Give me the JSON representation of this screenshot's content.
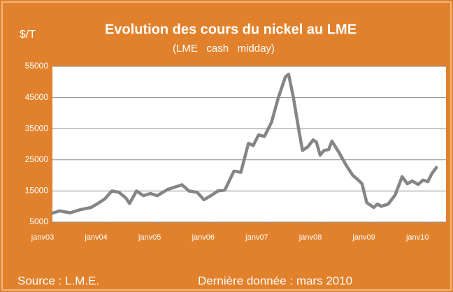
{
  "chart_data": {
    "type": "line",
    "title": "Evolution des cours du nickel au LME",
    "subtitle": "(LME   cash   midday)",
    "y_label": "$/T",
    "source": "Source : L.M.E.",
    "note": "Dernière donnée : mars 2010",
    "x": [
      2003.0,
      2003.13,
      2003.33,
      2003.52,
      2003.72,
      2003.85,
      2003.98,
      2004.11,
      2004.24,
      2004.37,
      2004.44,
      2004.57,
      2004.7,
      2004.83,
      2004.96,
      2005.15,
      2005.28,
      2005.42,
      2005.55,
      2005.7,
      2005.83,
      2005.96,
      2006.09,
      2006.22,
      2006.39,
      2006.52,
      2006.66,
      2006.75,
      2006.85,
      2006.96,
      2007.09,
      2007.22,
      2007.35,
      2007.41,
      2007.5,
      2007.61,
      2007.67,
      2007.77,
      2007.87,
      2007.93,
      2008.0,
      2008.07,
      2008.16,
      2008.22,
      2008.35,
      2008.48,
      2008.61,
      2008.7,
      2008.78,
      2008.87,
      2009.0,
      2009.07,
      2009.14,
      2009.27,
      2009.4,
      2009.53,
      2009.63,
      2009.72,
      2009.83,
      2009.92,
      2010.01,
      2010.09,
      2010.17
    ],
    "series": [
      {
        "name": "Nickel",
        "color": "#858585",
        "values": [
          7900,
          8600,
          8000,
          9000,
          9700,
          11000,
          12500,
          15000,
          14600,
          12800,
          11000,
          15000,
          13500,
          14200,
          13500,
          15500,
          16200,
          17000,
          15000,
          14600,
          12200,
          13500,
          15000,
          15300,
          21400,
          21000,
          30300,
          29600,
          33000,
          32500,
          37000,
          45000,
          51600,
          52500,
          45000,
          33700,
          28000,
          29200,
          31400,
          30700,
          26500,
          28000,
          28300,
          31000,
          27400,
          23400,
          20000,
          18700,
          17400,
          11300,
          9700,
          10800,
          10100,
          10800,
          13700,
          19600,
          17300,
          18200,
          17100,
          18500,
          18000,
          20700,
          22500
        ]
      }
    ],
    "xlim": [
      2003,
      2010.35
    ],
    "xticks": [
      {
        "value": 2003,
        "label": "janv03"
      },
      {
        "value": 2004,
        "label": "janv04"
      },
      {
        "value": 2005,
        "label": "janv05"
      },
      {
        "value": 2006,
        "label": "janv06"
      },
      {
        "value": 2007,
        "label": "janv07"
      },
      {
        "value": 2008,
        "label": "janv08"
      },
      {
        "value": 2009,
        "label": "janv09"
      },
      {
        "value": 2010,
        "label": "janv10"
      }
    ],
    "ylim": [
      5000,
      55000
    ],
    "yticks": [
      5000,
      15000,
      25000,
      35000,
      45000,
      55000
    ],
    "grid": true
  }
}
